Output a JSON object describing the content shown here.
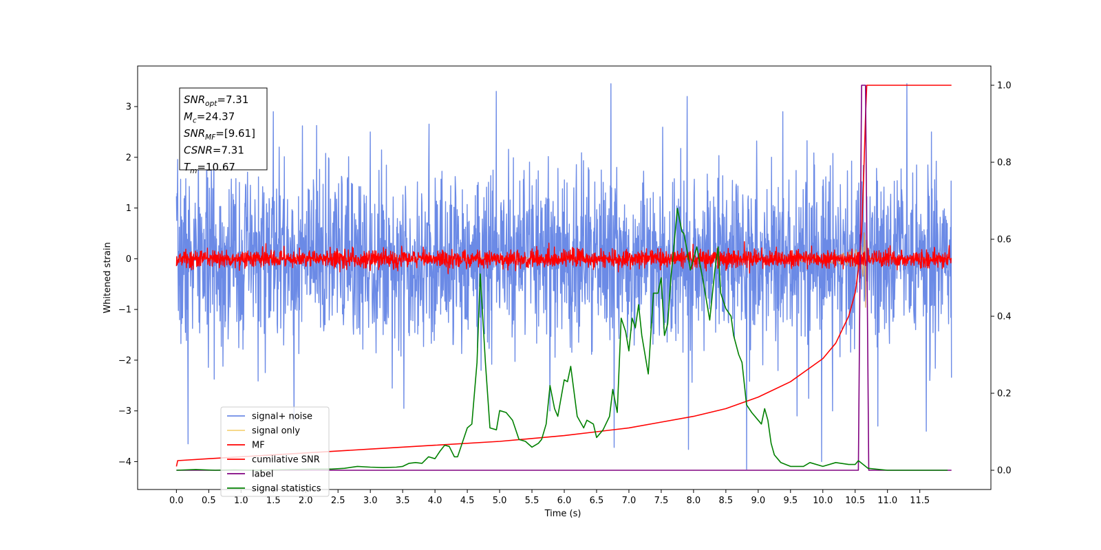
{
  "chart_data": {
    "type": "line",
    "xlabel": "Time (s)",
    "ylabel": "Whitened strain",
    "xlim": [
      -0.6,
      12.6
    ],
    "ylim_left": [
      -4.55,
      3.8
    ],
    "ylim_right": [
      -0.05,
      1.05
    ],
    "x_ticks": [
      0.0,
      0.5,
      1.0,
      1.5,
      2.0,
      2.5,
      3.0,
      3.5,
      4.0,
      4.5,
      5.0,
      5.5,
      6.0,
      6.5,
      7.0,
      7.5,
      8.0,
      8.5,
      9.0,
      9.5,
      10.0,
      10.5,
      11.0,
      11.5
    ],
    "x_tick_labels": [
      "0.0",
      "0.5",
      "1.0",
      "1.5",
      "2.0",
      "2.5",
      "3.0",
      "3.5",
      "4.0",
      "4.5",
      "5.0",
      "5.5",
      "6.0",
      "6.5",
      "7.0",
      "7.5",
      "8.0",
      "8.5",
      "9.0",
      "9.5",
      "10.0",
      "10.5",
      "11.0",
      "11.5"
    ],
    "y_ticks_left": [
      -4,
      -3,
      -2,
      -1,
      0,
      1,
      2,
      3
    ],
    "y_tick_labels_left": [
      "−4",
      "−3",
      "−2",
      "−1",
      "0",
      "1",
      "2",
      "3"
    ],
    "y_ticks_right": [
      0.0,
      0.2,
      0.4,
      0.6,
      0.8,
      1.0
    ],
    "y_tick_labels_right": [
      "0.0",
      "0.2",
      "0.4",
      "0.6",
      "0.8",
      "1.0"
    ],
    "legend_placement": "lower-left",
    "series": [
      {
        "name": "signal+ noise",
        "color": "#6b8ae6",
        "axis": "left",
        "kind": "noise",
        "x_range": [
          0.0,
          11.99
        ],
        "std": 0.85,
        "points": 2400,
        "seed": 7,
        "spikes": [
          [
            0.18,
            -3.65
          ],
          [
            0.58,
            2.7
          ],
          [
            1.5,
            2.9
          ],
          [
            1.82,
            -3.2
          ],
          [
            3.0,
            2.5
          ],
          [
            3.52,
            -2.95
          ],
          [
            4.95,
            3.3
          ],
          [
            5.78,
            -3.0
          ],
          [
            6.72,
            3.45
          ],
          [
            6.77,
            -3.72
          ],
          [
            7.9,
            3.2
          ],
          [
            7.92,
            -3.76
          ],
          [
            8.82,
            -4.15
          ],
          [
            9.38,
            2.9
          ],
          [
            9.6,
            -3.1
          ],
          [
            9.98,
            -4.0
          ],
          [
            10.15,
            -3.0
          ],
          [
            10.85,
            -3.3
          ],
          [
            11.3,
            3.45
          ],
          [
            11.6,
            -3.4
          ],
          [
            11.68,
            2.5
          ]
        ]
      },
      {
        "name": "signal only",
        "color": "#f5d27a",
        "axis": "left",
        "kind": "chirp",
        "x_range": [
          0.0,
          11.99
        ]
      },
      {
        "name": "MF",
        "color": "#ff0000",
        "axis": "left",
        "kind": "noise",
        "x_range": [
          0.0,
          11.99
        ],
        "std": 0.09,
        "points": 2400,
        "seed": 13
      },
      {
        "name": "cumilative SNR",
        "color": "#ff0000",
        "axis": "right",
        "x": [
          0.0,
          0.02,
          0.5,
          1.0,
          2.0,
          3.0,
          4.0,
          5.0,
          6.0,
          6.5,
          7.0,
          7.5,
          8.0,
          8.5,
          9.0,
          9.5,
          10.0,
          10.2,
          10.4,
          10.5,
          10.55,
          10.6,
          10.63,
          10.66,
          10.68,
          11.99
        ],
        "y": [
          0.01,
          0.025,
          0.03,
          0.035,
          0.045,
          0.055,
          0.065,
          0.075,
          0.09,
          0.1,
          0.11,
          0.125,
          0.14,
          0.16,
          0.19,
          0.23,
          0.29,
          0.33,
          0.4,
          0.46,
          0.52,
          0.62,
          0.75,
          0.92,
          1.0,
          1.0
        ]
      },
      {
        "name": "label",
        "color": "#800080",
        "axis": "right",
        "x": [
          0.0,
          10.55,
          10.6,
          10.66,
          10.71,
          11.99
        ],
        "y": [
          0.0,
          0.0,
          1.0,
          1.0,
          0.0,
          0.0
        ]
      },
      {
        "name": "signal statistics",
        "color": "#008000",
        "axis": "right",
        "x": [
          0.0,
          0.3,
          0.6,
          0.9,
          1.2,
          1.5,
          1.8,
          2.1,
          2.4,
          2.6,
          2.8,
          3.0,
          3.2,
          3.4,
          3.5,
          3.6,
          3.7,
          3.8,
          3.9,
          4.0,
          4.08,
          4.15,
          4.22,
          4.3,
          4.35,
          4.4,
          4.5,
          4.57,
          4.65,
          4.7,
          4.78,
          4.85,
          4.95,
          5.0,
          5.1,
          5.2,
          5.3,
          5.4,
          5.5,
          5.6,
          5.65,
          5.72,
          5.78,
          5.85,
          5.9,
          6.0,
          6.05,
          6.1,
          6.2,
          6.3,
          6.35,
          6.45,
          6.5,
          6.6,
          6.7,
          6.75,
          6.82,
          6.88,
          6.95,
          7.0,
          7.05,
          7.1,
          7.15,
          7.2,
          7.3,
          7.38,
          7.45,
          7.5,
          7.55,
          7.6,
          7.65,
          7.75,
          7.82,
          7.85,
          7.9,
          7.95,
          8.05,
          8.15,
          8.25,
          8.33,
          8.38,
          8.42,
          8.5,
          8.58,
          8.62,
          8.7,
          8.75,
          8.82,
          8.9,
          9.0,
          9.05,
          9.1,
          9.15,
          9.2,
          9.25,
          9.35,
          9.5,
          9.7,
          9.8,
          10.0,
          10.2,
          10.4,
          10.5,
          10.55,
          10.7,
          11.0,
          11.5,
          11.93
        ],
        "y": [
          0.0,
          0.002,
          0.0,
          0.001,
          0.0,
          0.001,
          0.002,
          0.003,
          0.003,
          0.005,
          0.01,
          0.008,
          0.007,
          0.008,
          0.01,
          0.018,
          0.02,
          0.018,
          0.035,
          0.03,
          0.05,
          0.065,
          0.062,
          0.035,
          0.035,
          0.06,
          0.11,
          0.12,
          0.28,
          0.51,
          0.28,
          0.11,
          0.105,
          0.155,
          0.15,
          0.13,
          0.08,
          0.075,
          0.06,
          0.07,
          0.08,
          0.12,
          0.22,
          0.16,
          0.14,
          0.235,
          0.23,
          0.27,
          0.14,
          0.11,
          0.13,
          0.12,
          0.085,
          0.105,
          0.14,
          0.21,
          0.15,
          0.395,
          0.36,
          0.31,
          0.395,
          0.37,
          0.43,
          0.35,
          0.25,
          0.46,
          0.46,
          0.5,
          0.35,
          0.38,
          0.5,
          0.68,
          0.62,
          0.615,
          0.57,
          0.52,
          0.58,
          0.49,
          0.39,
          0.52,
          0.58,
          0.46,
          0.42,
          0.4,
          0.35,
          0.3,
          0.28,
          0.17,
          0.15,
          0.13,
          0.12,
          0.16,
          0.13,
          0.07,
          0.04,
          0.02,
          0.01,
          0.01,
          0.02,
          0.01,
          0.02,
          0.015,
          0.015,
          0.025,
          0.005,
          0.0,
          0.0,
          0.0
        ]
      }
    ],
    "annotation": [
      {
        "base": "SNR",
        "sub": "opt",
        "rest": "=7.31"
      },
      {
        "base": "M",
        "sub": "c",
        "rest": "=24.37"
      },
      {
        "base": "SNR",
        "sub": "MF",
        "rest": "=[9.61]"
      },
      {
        "base": "CSNR",
        "sub": "",
        "rest": "=7.31"
      },
      {
        "base": "T",
        "sub": "m",
        "rest": "=10.67"
      }
    ]
  }
}
